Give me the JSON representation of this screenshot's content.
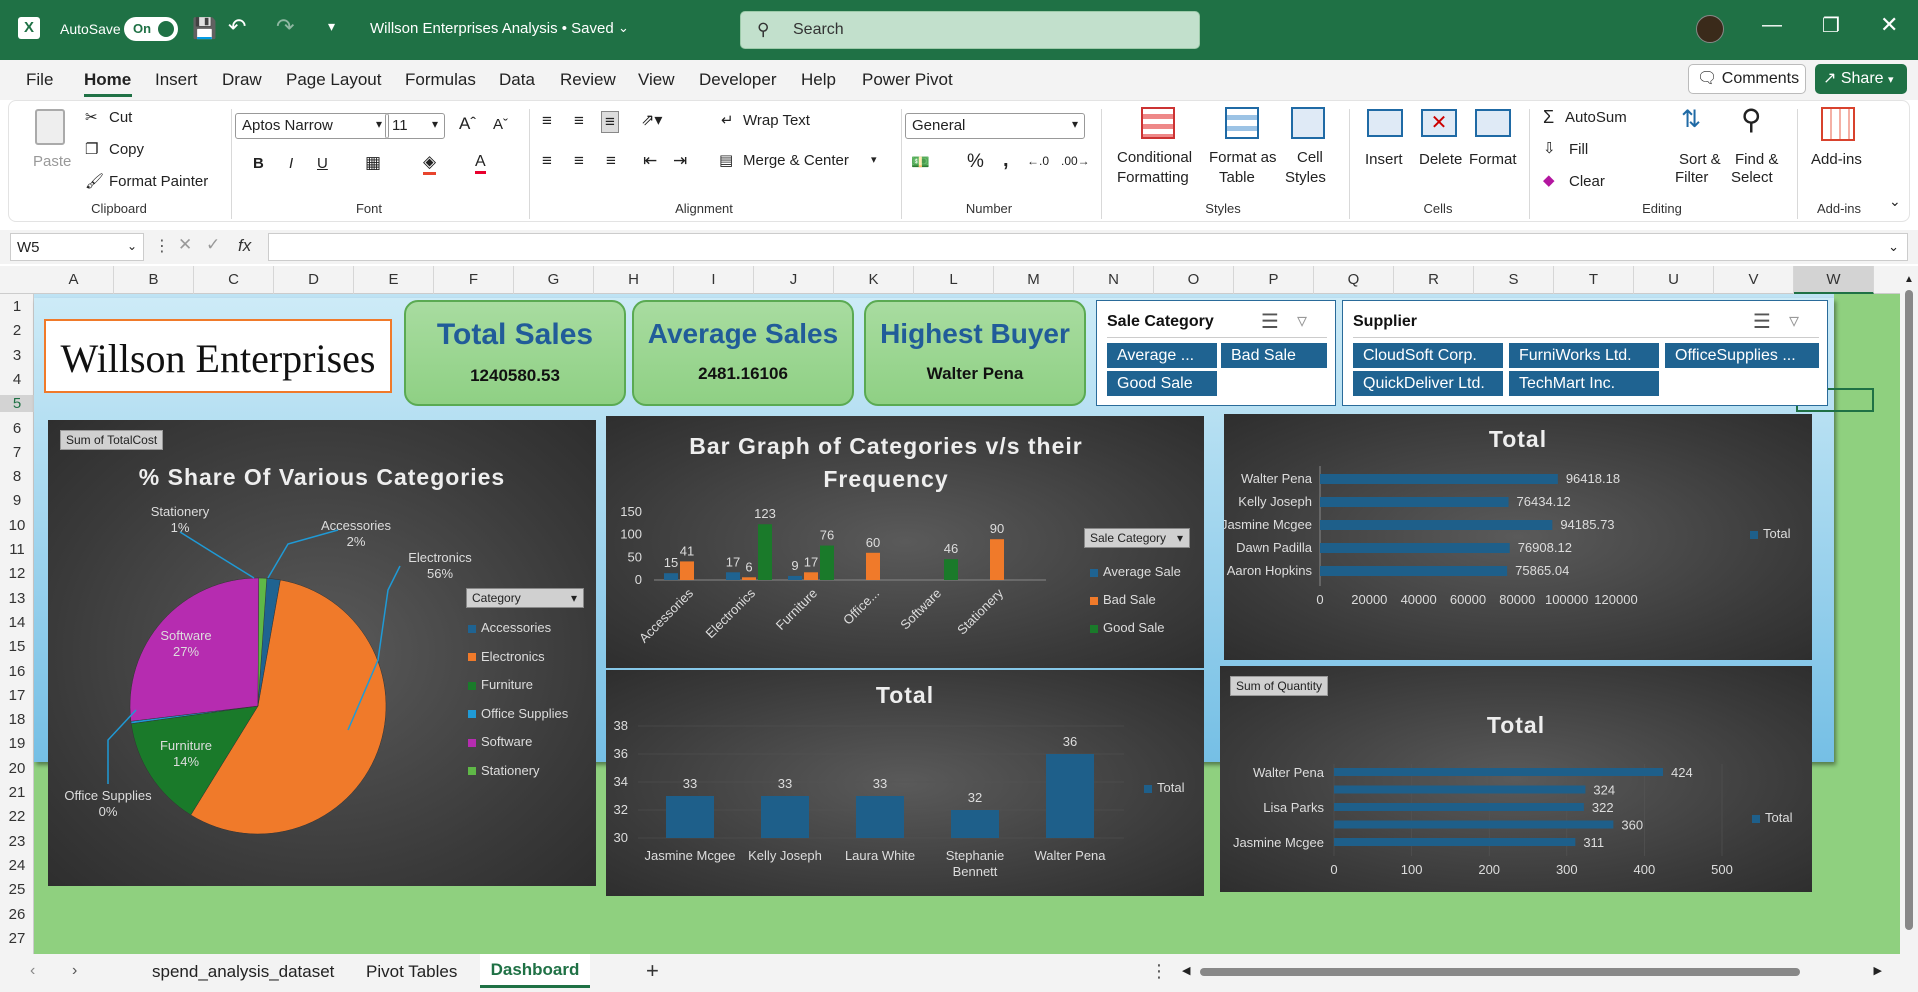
{
  "app": {
    "autosave_label": "AutoSave",
    "autosave_state": "On",
    "doc_title": "Willson Enterprises Analysis • Saved",
    "search_placeholder": "Search"
  },
  "menu": [
    "File",
    "Home",
    "Insert",
    "Draw",
    "Page Layout",
    "Formulas",
    "Data",
    "Review",
    "View",
    "Developer",
    "Help",
    "Power Pivot"
  ],
  "menu_active": "Home",
  "comments_label": "Comments",
  "share_label": "Share",
  "ribbon": {
    "paste": "Paste",
    "cut": "Cut",
    "copy": "Copy",
    "format_painter": "Format Painter",
    "clipboard": "Clipboard",
    "font_name": "Aptos Narrow",
    "font_size": "11",
    "font": "Font",
    "wrap_text": "Wrap Text",
    "merge_center": "Merge & Center",
    "alignment": "Alignment",
    "number_format": "General",
    "number": "Number",
    "cond_format_1": "Conditional",
    "cond_format_2": "Formatting",
    "format_table_1": "Format as",
    "format_table_2": "Table",
    "cell_styles_1": "Cell",
    "cell_styles_2": "Styles",
    "styles": "Styles",
    "insert": "Insert",
    "delete": "Delete",
    "format": "Format",
    "cells": "Cells",
    "autosum": "AutoSum",
    "fill": "Fill",
    "clear": "Clear",
    "sort_1": "Sort &",
    "sort_2": "Filter",
    "find_1": "Find &",
    "find_2": "Select",
    "editing": "Editing",
    "addins": "Add-ins",
    "addins_group": "Add-ins"
  },
  "formula_bar": {
    "name_box": "W5",
    "fx": "fx",
    "value": ""
  },
  "columns": [
    "A",
    "B",
    "C",
    "D",
    "E",
    "F",
    "G",
    "H",
    "I",
    "J",
    "K",
    "L",
    "M",
    "N",
    "O",
    "P",
    "Q",
    "R",
    "S",
    "T",
    "U",
    "V",
    "W"
  ],
  "rows": [
    "1",
    "2",
    "3",
    "4",
    "5",
    "6",
    "7",
    "8",
    "9",
    "10",
    "11",
    "12",
    "13",
    "14",
    "15",
    "16",
    "17",
    "18",
    "19",
    "20",
    "21",
    "22",
    "23",
    "24",
    "25",
    "26",
    "27"
  ],
  "dashboard": {
    "company": "Willson Enterprises",
    "kpis": [
      {
        "title": "Total Sales",
        "value": "1240580.53"
      },
      {
        "title": "Average Sales",
        "value": "2481.16106"
      },
      {
        "title": "Highest Buyer",
        "value": "Walter Pena"
      }
    ],
    "slicer_category": {
      "title": "Sale Category",
      "items": [
        "Average ...",
        "Bad Sale",
        "Good Sale"
      ]
    },
    "slicer_supplier": {
      "title": "Supplier",
      "items": [
        "CloudSoft Corp.",
        "FurniWorks Ltd.",
        "OfficeSupplies ...",
        "QuickDeliver Ltd.",
        "TechMart Inc."
      ]
    }
  },
  "colors": {
    "accessories": "#1f6391",
    "electronics": "#f07a2a",
    "furniture": "#1a7a2a",
    "office_supplies": "#1f9ad6",
    "software": "#b62cb0",
    "stationery": "#5fb847",
    "bar_blue": "#1e5f8a",
    "excel_green": "#1f7145"
  },
  "chart_data": [
    {
      "type": "pie",
      "title": "% Share Of Various Categories",
      "field_button": "Sum of TotalCost",
      "legend_title": "Category",
      "categories": [
        "Accessories",
        "Electronics",
        "Furniture",
        "Office Supplies",
        "Software",
        "Stationery"
      ],
      "values": [
        2,
        56,
        14,
        0,
        27,
        1
      ],
      "labels": [
        "2%",
        "56%",
        "14%",
        "0%",
        "27%",
        "1%"
      ],
      "legend": "right"
    },
    {
      "type": "bar",
      "title": "Bar Graph of Categories v/s their Frequency",
      "legend_title": "Sale Category",
      "categories": [
        "Accessories",
        "Electronics",
        "Furniture",
        "Office...",
        "Software",
        "Stationery"
      ],
      "series": [
        {
          "name": "Average Sale",
          "values": [
            15,
            17,
            9,
            null,
            null,
            null
          ]
        },
        {
          "name": "Bad Sale",
          "values": [
            41,
            6,
            17,
            60,
            null,
            90
          ]
        },
        {
          "name": "Good Sale",
          "values": [
            null,
            123,
            76,
            null,
            46,
            null
          ]
        }
      ],
      "yticks": [
        "0",
        "50",
        "100",
        "150"
      ],
      "ylim": [
        0,
        150
      ],
      "legend": "right"
    },
    {
      "type": "bar",
      "orientation": "horizontal",
      "title": "Total",
      "categories": [
        "Walter Pena",
        "Kelly Joseph",
        "Jasmine Mcgee",
        "Dawn Padilla",
        "Aaron Hopkins"
      ],
      "values": [
        96418.18,
        76434.12,
        94185.73,
        76908.12,
        75865.04
      ],
      "value_labels": [
        "96418.18",
        "76434.12",
        "94185.73",
        "76908.12",
        "75865.04"
      ],
      "series": [
        {
          "name": "Total"
        }
      ],
      "xticks": [
        "0",
        "20000",
        "40000",
        "60000",
        "80000",
        "100000",
        "120000"
      ],
      "xlim": [
        0,
        120000
      ],
      "legend": "right"
    },
    {
      "type": "bar",
      "title": "Total",
      "categories": [
        "Jasmine Mcgee",
        "Kelly Joseph",
        "Laura White",
        "Stephanie Bennett",
        "Walter Pena"
      ],
      "values": [
        33,
        33,
        33,
        32,
        36
      ],
      "series": [
        {
          "name": "Total"
        }
      ],
      "yticks": [
        "30",
        "32",
        "34",
        "36",
        "38"
      ],
      "ylim": [
        30,
        38
      ],
      "legend": "right"
    },
    {
      "type": "bar",
      "orientation": "horizontal",
      "title": "Total",
      "field_button": "Sum of Quantity",
      "row_labels": [
        "Walter Pena",
        "",
        "Lisa Parks",
        "",
        "Jasmine Mcgee"
      ],
      "values": [
        424,
        324,
        322,
        360,
        311
      ],
      "series": [
        {
          "name": "Total"
        }
      ],
      "xticks": [
        "0",
        "100",
        "200",
        "300",
        "400",
        "500"
      ],
      "xlim": [
        0,
        500
      ],
      "legend": "right"
    }
  ],
  "sheets": [
    "spend_analysis_dataset",
    "Pivot Tables",
    "Dashboard"
  ],
  "active_sheet": "Dashboard"
}
